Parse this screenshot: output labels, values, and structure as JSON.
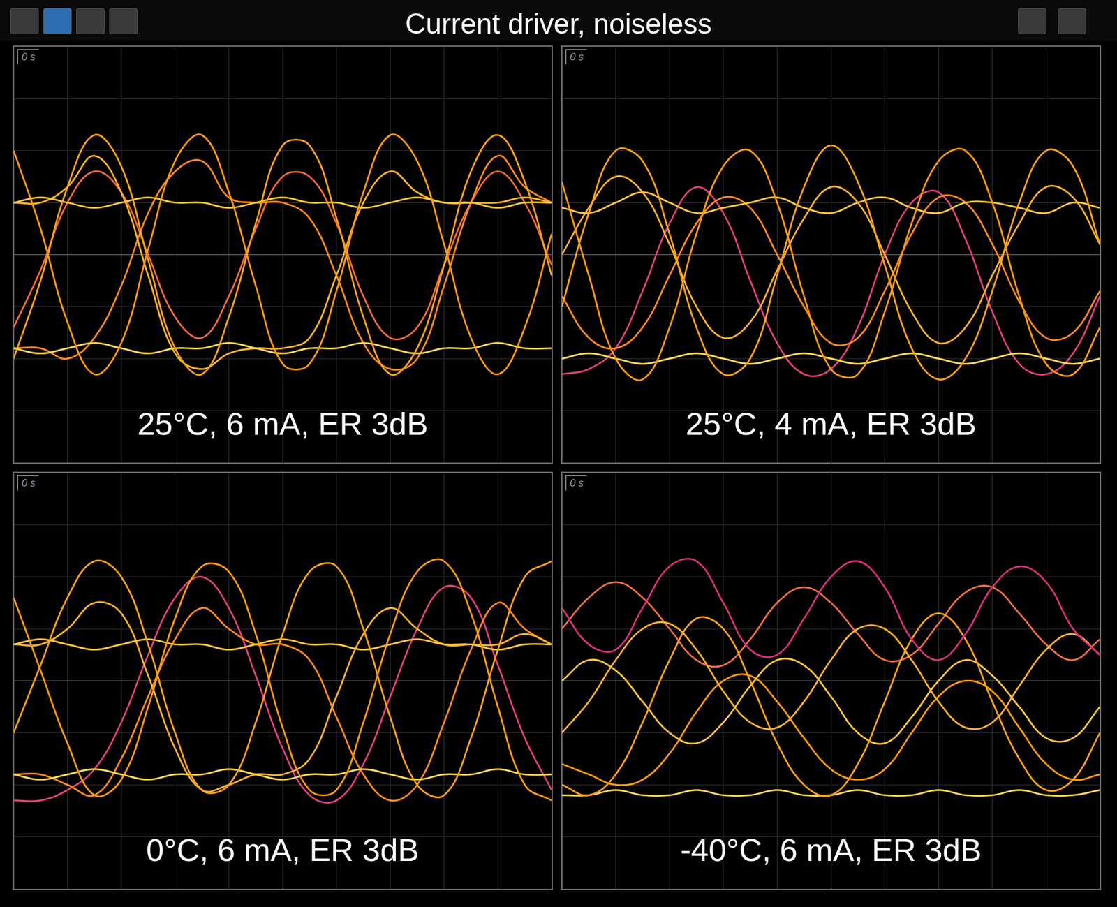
{
  "title": "Current driver, noiseless",
  "chart_data": [
    {
      "type": "line",
      "title": "25°C, 6 mA, ER 3dB",
      "annotation": "0 s",
      "x": [
        0,
        0.5,
        1,
        1.5,
        2,
        2.5,
        3,
        3.5,
        4,
        4.5,
        5,
        5.5,
        6,
        6.5,
        7,
        7.5,
        8,
        8.5,
        9,
        9.5,
        10
      ],
      "xlim": [
        0,
        10
      ],
      "xticks": [
        0,
        1,
        2,
        3,
        4,
        5,
        6,
        7,
        8,
        9,
        10
      ],
      "ylim": [
        0,
        8
      ],
      "yticks": [
        0,
        1,
        2,
        3,
        4,
        5,
        6,
        7,
        8
      ],
      "grid": true,
      "tick_labels": false,
      "series": [
        {
          "color": "#ffa21a",
          "values": [
            2.0,
            3.5,
            5.3,
            6.3,
            5.7,
            3.9,
            2.2,
            1.7,
            2.8,
            4.6,
            6.1,
            6.1,
            4.7,
            2.8,
            1.7,
            2.2,
            3.8,
            5.6,
            6.3,
            5.4,
            3.6
          ]
        },
        {
          "color": "#ff9a10",
          "values": [
            6.0,
            4.5,
            2.7,
            1.7,
            2.3,
            4.1,
            5.8,
            6.3,
            5.2,
            3.4,
            1.9,
            1.9,
            3.3,
            5.2,
            6.3,
            5.8,
            4.2,
            2.4,
            1.7,
            2.6,
            4.4
          ]
        },
        {
          "color": "#ffc640",
          "values": [
            5.0,
            5.1,
            5.0,
            4.9,
            5.0,
            5.1,
            5.0,
            5.0,
            4.9,
            5.0,
            5.1,
            5.0,
            5.0,
            4.9,
            5.0,
            5.1,
            5.0,
            5.0,
            4.9,
            5.0,
            5.0
          ]
        },
        {
          "color": "#ffd85a",
          "values": [
            2.2,
            2.1,
            2.2,
            2.3,
            2.2,
            2.1,
            2.2,
            2.2,
            2.3,
            2.2,
            2.1,
            2.2,
            2.2,
            2.3,
            2.2,
            2.1,
            2.2,
            2.2,
            2.3,
            2.2,
            2.2
          ]
        },
        {
          "color": "#ffb22e",
          "values": [
            5.0,
            5.0,
            5.3,
            5.9,
            5.2,
            3.6,
            2.1,
            1.8,
            2.1,
            2.2,
            2.2,
            2.4,
            3.6,
            5.0,
            5.6,
            5.2,
            5.0,
            5.0,
            5.0,
            5.1,
            5.0
          ]
        },
        {
          "color": "#ff8a1e",
          "values": [
            2.2,
            2.2,
            2.0,
            2.4,
            3.4,
            4.8,
            5.6,
            5.8,
            5.1,
            5.0,
            5.0,
            4.7,
            3.6,
            2.3,
            1.8,
            2.0,
            3.4,
            5.0,
            5.9,
            5.3,
            5.0
          ]
        },
        {
          "color": "#f26a3a",
          "values": [
            2.6,
            3.7,
            5.0,
            5.6,
            5.2,
            4.0,
            2.8,
            2.4,
            3.2,
            4.5,
            5.5,
            5.5,
            4.6,
            3.2,
            2.4,
            2.6,
            3.8,
            5.0,
            5.6,
            5.0,
            3.8
          ]
        }
      ]
    },
    {
      "type": "line",
      "title": "25°C, 4 mA, ER 3dB",
      "annotation": "0 s",
      "x": [
        0,
        0.5,
        1,
        1.5,
        2,
        2.5,
        3,
        3.5,
        4,
        4.5,
        5,
        5.5,
        6,
        6.5,
        7,
        7.5,
        8,
        8.5,
        9,
        9.5,
        10
      ],
      "xlim": [
        0,
        10
      ],
      "xticks": [
        0,
        1,
        2,
        3,
        4,
        5,
        6,
        7,
        8,
        9,
        10
      ],
      "ylim": [
        0,
        8
      ],
      "yticks": [
        0,
        1,
        2,
        3,
        4,
        5,
        6,
        7,
        8
      ],
      "grid": true,
      "tick_labels": false,
      "series": [
        {
          "color": "#ffa21a",
          "values": [
            3.0,
            4.8,
            6.0,
            5.8,
            4.4,
            2.6,
            1.7,
            2.0,
            3.6,
            5.3,
            6.1,
            5.4,
            3.8,
            2.2,
            1.6,
            2.0,
            3.3,
            5.0,
            6.0,
            5.7,
            4.2
          ]
        },
        {
          "color": "#ff9a10",
          "values": [
            5.4,
            3.6,
            2.0,
            1.6,
            2.6,
            4.4,
            5.7,
            6.0,
            5.0,
            3.2,
            1.8,
            1.7,
            2.9,
            4.6,
            5.8,
            6.0,
            5.0,
            3.2,
            1.9,
            1.7,
            2.6
          ]
        },
        {
          "color": "#ffc640",
          "values": [
            4.9,
            4.8,
            5.0,
            5.2,
            5.0,
            4.8,
            4.9,
            5.0,
            5.1,
            4.9,
            4.8,
            5.0,
            5.1,
            4.9,
            4.8,
            5.0,
            5.0,
            4.9,
            4.8,
            5.0,
            4.9
          ]
        },
        {
          "color": "#ffd85a",
          "values": [
            2.0,
            2.1,
            2.0,
            1.9,
            2.0,
            2.1,
            2.0,
            1.9,
            2.0,
            2.1,
            2.0,
            1.9,
            2.0,
            2.1,
            2.0,
            1.9,
            2.0,
            2.1,
            2.0,
            1.9,
            2.0
          ]
        },
        {
          "color": "#ffb22e",
          "values": [
            4.0,
            4.9,
            5.5,
            5.2,
            4.2,
            3.0,
            2.4,
            2.7,
            3.7,
            4.7,
            5.3,
            5.0,
            4.0,
            2.9,
            2.3,
            2.6,
            3.6,
            4.6,
            5.3,
            5.1,
            4.2
          ]
        },
        {
          "color": "#ff8a1e",
          "values": [
            3.2,
            2.4,
            2.2,
            2.6,
            3.6,
            4.6,
            5.1,
            4.9,
            4.0,
            3.0,
            2.3,
            2.4,
            3.3,
            4.4,
            5.1,
            5.0,
            4.2,
            3.1,
            2.4,
            2.5,
            3.3
          ]
        },
        {
          "color": "#e0407a",
          "values": [
            1.7,
            1.8,
            2.2,
            3.3,
            4.6,
            5.3,
            4.8,
            3.5,
            2.3,
            1.7,
            1.8,
            2.6,
            4.0,
            5.0,
            5.2,
            4.3,
            2.9,
            1.9,
            1.7,
            2.1,
            3.2
          ]
        }
      ]
    },
    {
      "type": "line",
      "title": "0°C, 6 mA, ER 3dB",
      "annotation": "0 s",
      "x": [
        0,
        0.5,
        1,
        1.5,
        2,
        2.5,
        3,
        3.5,
        4,
        4.5,
        5,
        5.5,
        6,
        6.5,
        7,
        7.5,
        8,
        8.5,
        9,
        9.5,
        10
      ],
      "xlim": [
        0,
        10
      ],
      "xticks": [
        0,
        1,
        2,
        3,
        4,
        5,
        6,
        7,
        8,
        9,
        10
      ],
      "ylim": [
        0,
        8
      ],
      "yticks": [
        0,
        1,
        2,
        3,
        4,
        5,
        6,
        7,
        8
      ],
      "grid": true,
      "tick_labels": false,
      "series": [
        {
          "color": "#ffa21a",
          "values": [
            3.0,
            4.3,
            5.6,
            6.3,
            6.0,
            4.7,
            3.0,
            1.9,
            2.0,
            3.2,
            4.9,
            6.1,
            6.2,
            5.0,
            3.3,
            2.0,
            1.8,
            2.9,
            4.6,
            6.0,
            6.3
          ]
        },
        {
          "color": "#ff9a10",
          "values": [
            5.6,
            4.2,
            2.8,
            1.8,
            2.1,
            3.5,
            5.2,
            6.2,
            6.1,
            4.9,
            3.1,
            1.9,
            1.9,
            3.2,
            4.9,
            6.1,
            6.3,
            5.3,
            3.5,
            2.0,
            1.7
          ]
        },
        {
          "color": "#ffc640",
          "values": [
            4.7,
            4.8,
            4.7,
            4.6,
            4.7,
            4.8,
            4.7,
            4.7,
            4.6,
            4.7,
            4.8,
            4.7,
            4.7,
            4.6,
            4.7,
            4.8,
            4.7,
            4.7,
            4.6,
            4.7,
            4.7
          ]
        },
        {
          "color": "#ffd85a",
          "values": [
            2.2,
            2.1,
            2.2,
            2.3,
            2.2,
            2.1,
            2.2,
            2.2,
            2.3,
            2.2,
            2.1,
            2.2,
            2.2,
            2.3,
            2.2,
            2.1,
            2.2,
            2.2,
            2.3,
            2.2,
            2.2
          ]
        },
        {
          "color": "#ffb22e",
          "values": [
            4.7,
            4.7,
            5.0,
            5.5,
            5.3,
            4.1,
            2.7,
            1.9,
            2.0,
            2.2,
            2.2,
            2.5,
            3.7,
            4.9,
            5.4,
            5.0,
            4.7,
            4.7,
            4.7,
            4.9,
            4.7
          ]
        },
        {
          "color": "#ff8a1e",
          "values": [
            2.2,
            2.2,
            2.0,
            1.8,
            2.5,
            3.7,
            4.8,
            5.4,
            5.0,
            4.7,
            4.7,
            4.4,
            3.3,
            2.2,
            1.7,
            2.0,
            3.2,
            4.6,
            5.5,
            5.0,
            4.7
          ]
        },
        {
          "color": "#e0407a",
          "values": [
            1.7,
            1.7,
            1.9,
            2.3,
            3.2,
            4.5,
            5.6,
            6.0,
            5.4,
            4.1,
            2.7,
            1.8,
            1.7,
            2.4,
            3.7,
            5.0,
            5.8,
            5.6,
            4.3,
            2.9,
            1.9
          ]
        }
      ]
    },
    {
      "type": "line",
      "title": "-40°C, 6 mA, ER 3dB",
      "annotation": "0 s",
      "x": [
        0,
        0.5,
        1,
        1.5,
        2,
        2.5,
        3,
        3.5,
        4,
        4.5,
        5,
        5.5,
        6,
        6.5,
        7,
        7.5,
        8,
        8.5,
        9,
        9.5,
        10
      ],
      "xlim": [
        0,
        10
      ],
      "xticks": [
        0,
        1,
        2,
        3,
        4,
        5,
        6,
        7,
        8,
        9,
        10
      ],
      "ylim": [
        0,
        8
      ],
      "yticks": [
        0,
        1,
        2,
        3,
        4,
        5,
        6,
        7,
        8
      ],
      "grid": true,
      "tick_labels": false,
      "series": [
        {
          "color": "#d8307a",
          "values": [
            5.4,
            4.7,
            4.6,
            5.4,
            6.2,
            6.3,
            5.5,
            4.6,
            4.5,
            5.2,
            6.0,
            6.3,
            5.8,
            4.8,
            4.4,
            4.9,
            5.8,
            6.2,
            5.9,
            5.0,
            4.5
          ]
        },
        {
          "color": "#ffa21a",
          "values": [
            2.0,
            1.8,
            2.2,
            3.2,
            4.4,
            5.2,
            5.0,
            4.0,
            2.8,
            2.0,
            1.8,
            2.4,
            3.6,
            4.8,
            5.3,
            4.8,
            3.6,
            2.5,
            1.9,
            2.1,
            3.0
          ]
        },
        {
          "color": "#ffc640",
          "values": [
            4.0,
            4.4,
            4.2,
            3.6,
            3.0,
            2.8,
            3.2,
            3.9,
            4.4,
            4.3,
            3.7,
            3.0,
            2.8,
            3.3,
            4.0,
            4.4,
            4.1,
            3.5,
            2.9,
            2.9,
            3.5
          ]
        },
        {
          "color": "#ffd85a",
          "values": [
            1.8,
            1.8,
            1.9,
            1.8,
            1.8,
            1.9,
            1.8,
            1.8,
            1.9,
            1.8,
            1.8,
            1.9,
            1.8,
            1.8,
            1.9,
            1.8,
            1.8,
            1.9,
            1.8,
            1.8,
            1.9
          ]
        },
        {
          "color": "#ffb22e",
          "values": [
            3.0,
            3.6,
            4.4,
            5.0,
            5.1,
            4.6,
            3.8,
            3.2,
            3.1,
            3.6,
            4.4,
            5.0,
            5.0,
            4.4,
            3.6,
            3.1,
            3.2,
            3.9,
            4.6,
            4.9,
            4.5
          ]
        },
        {
          "color": "#ff9a10",
          "values": [
            2.4,
            2.2,
            2.0,
            2.1,
            2.6,
            3.4,
            4.0,
            4.1,
            3.6,
            2.9,
            2.3,
            2.1,
            2.3,
            3.0,
            3.7,
            4.0,
            3.8,
            3.1,
            2.4,
            2.1,
            2.2
          ]
        },
        {
          "color": "#f0703a",
          "values": [
            5.0,
            5.6,
            5.9,
            5.6,
            5.0,
            4.4,
            4.3,
            4.8,
            5.5,
            5.8,
            5.5,
            4.9,
            4.4,
            4.5,
            5.1,
            5.7,
            5.8,
            5.3,
            4.7,
            4.4,
            4.8
          ]
        }
      ]
    }
  ]
}
